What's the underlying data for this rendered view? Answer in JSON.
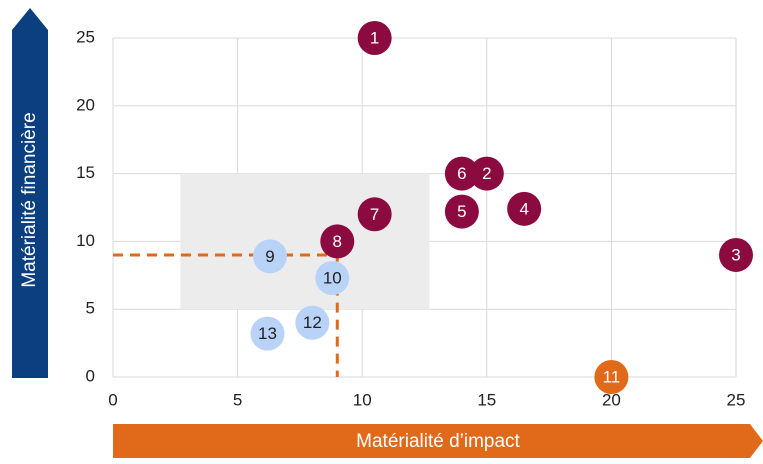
{
  "chart_data": {
    "type": "scatter",
    "x_label": "Matérialité d’impact",
    "y_label": "Matérialité financière",
    "xlim": [
      0,
      25
    ],
    "ylim": [
      0,
      25
    ],
    "xticks": [
      0,
      5,
      10,
      15,
      20,
      25
    ],
    "yticks": [
      0,
      5,
      10,
      15,
      20,
      25
    ],
    "grid": true,
    "highlight_box": {
      "xlim": [
        2.7,
        12.7
      ],
      "ylim": [
        5,
        15
      ],
      "color": "#ececec"
    },
    "reference_point": {
      "x": 9,
      "y": 9,
      "color": "#e06a1a"
    },
    "points": [
      {
        "label": "1",
        "x": 10.5,
        "y": 25,
        "color": "#8b0a3f"
      },
      {
        "label": "2",
        "x": 15,
        "y": 15,
        "color": "#8b0a3f"
      },
      {
        "label": "3",
        "x": 25,
        "y": 9,
        "color": "#8b0a3f"
      },
      {
        "label": "4",
        "x": 16.5,
        "y": 12.4,
        "color": "#8b0a3f"
      },
      {
        "label": "5",
        "x": 14,
        "y": 12.2,
        "color": "#8b0a3f"
      },
      {
        "label": "6",
        "x": 14,
        "y": 15,
        "color": "#8b0a3f"
      },
      {
        "label": "7",
        "x": 10.5,
        "y": 12,
        "color": "#8b0a3f"
      },
      {
        "label": "8",
        "x": 9,
        "y": 10,
        "color": "#8b0a3f"
      },
      {
        "label": "9",
        "x": 6.3,
        "y": 8.9,
        "color": "#b8d3f7"
      },
      {
        "label": "10",
        "x": 8.8,
        "y": 7.3,
        "color": "#b8d3f7"
      },
      {
        "label": "11",
        "x": 20,
        "y": 0,
        "color": "#e06a1a"
      },
      {
        "label": "12",
        "x": 8,
        "y": 4,
        "color": "#b8d3f7"
      },
      {
        "label": "13",
        "x": 6.2,
        "y": 3.2,
        "color": "#b8d3f7"
      }
    ]
  }
}
